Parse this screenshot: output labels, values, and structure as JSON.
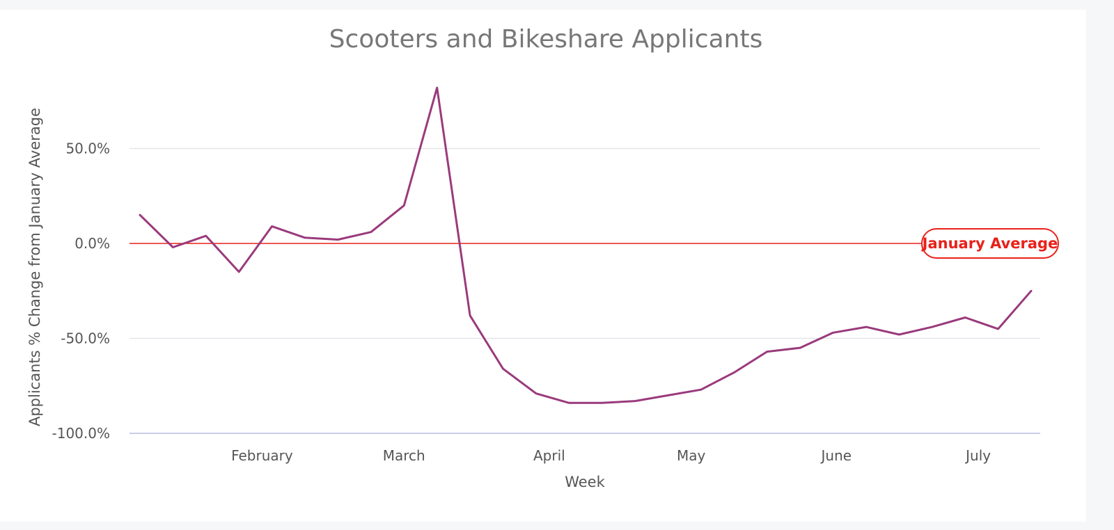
{
  "chart_data": {
    "type": "line",
    "title": "Scooters and Bikeshare Applicants",
    "xlabel": "Week",
    "ylabel": "Applicants % Change from January Average",
    "y_ticks": [
      {
        "value": 50,
        "label": "50.0%"
      },
      {
        "value": 0,
        "label": "0.0%"
      },
      {
        "value": -50,
        "label": "-50.0%"
      },
      {
        "value": -100,
        "label": "-100.0%"
      }
    ],
    "ylim": [
      -100,
      83
    ],
    "x_tick_labels": [
      {
        "label": "February",
        "index": 3.7
      },
      {
        "label": "March",
        "index": 8.0
      },
      {
        "label": "April",
        "index": 12.4
      },
      {
        "label": "May",
        "index": 16.7
      },
      {
        "label": "June",
        "index": 21.1
      },
      {
        "label": "July",
        "index": 25.4
      }
    ],
    "grid": true,
    "series": [
      {
        "color": "#9a3a7c",
        "values": [
          15,
          -2,
          4,
          -15,
          9,
          3,
          2,
          6,
          20,
          82,
          -38,
          -66,
          -79,
          -84,
          -84,
          -83,
          -80,
          -77,
          -68,
          -57,
          -55,
          -47,
          -44,
          -48,
          -44,
          -39,
          -45,
          -25
        ]
      }
    ],
    "reference_line": {
      "value": 0,
      "label": "January Average",
      "color": "#e8211a"
    }
  }
}
